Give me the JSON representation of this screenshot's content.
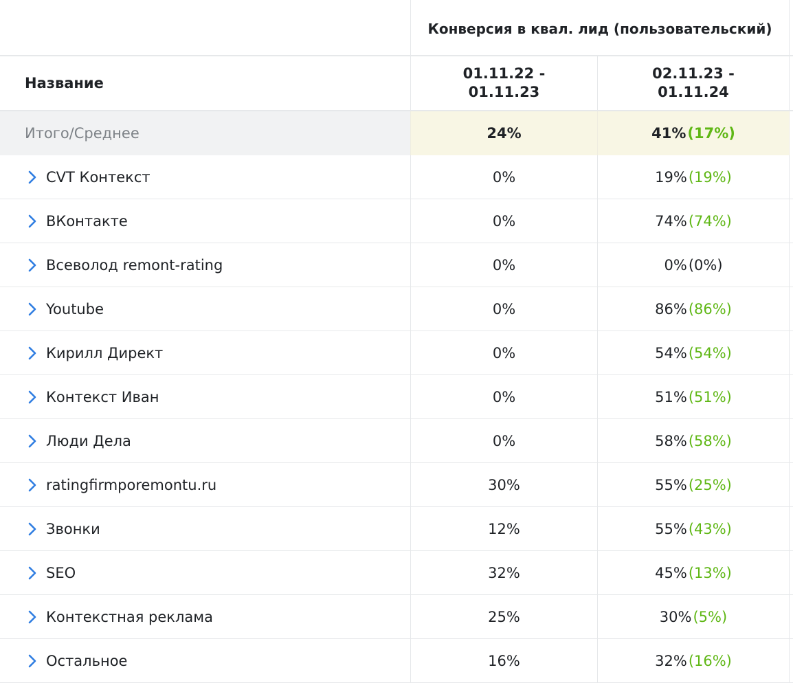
{
  "header": {
    "group_label": "Конверсия в квал. лид (пользовательский)",
    "name_label": "Название",
    "period1": "01.11.22 - 01.11.23",
    "period2": "02.11.23 - 01.11.24"
  },
  "total": {
    "label": "Итого/Среднее",
    "p1": "24%",
    "p2": "41%",
    "delta": "(17%)"
  },
  "rows": [
    {
      "name": "CVT Контекст",
      "p1": "0%",
      "p2": "19%",
      "delta": "(19%)"
    },
    {
      "name": "ВКонтакте",
      "p1": "0%",
      "p2": "74%",
      "delta": "(74%)"
    },
    {
      "name": "Всеволод remont-rating",
      "p1": "0%",
      "p2": "0%",
      "delta": "(0%)"
    },
    {
      "name": "Youtube",
      "p1": "0%",
      "p2": "86%",
      "delta": "(86%)"
    },
    {
      "name": "Кирилл Директ",
      "p1": "0%",
      "p2": "54%",
      "delta": "(54%)"
    },
    {
      "name": "Контекст Иван",
      "p1": "0%",
      "p2": "51%",
      "delta": "(51%)"
    },
    {
      "name": "Люди Дела",
      "p1": "0%",
      "p2": "58%",
      "delta": "(58%)"
    },
    {
      "name": "ratingfirmporemontu.ru",
      "p1": "30%",
      "p2": "55%",
      "delta": "(25%)"
    },
    {
      "name": "Звонки",
      "p1": "12%",
      "p2": "55%",
      "delta": "(43%)"
    },
    {
      "name": "SEO",
      "p1": "32%",
      "p2": "45%",
      "delta": "(13%)"
    },
    {
      "name": "Контекстная реклама",
      "p1": "25%",
      "p2": "30%",
      "delta": "(5%)"
    },
    {
      "name": "Остальное",
      "p1": "16%",
      "p2": "32%",
      "delta": "(16%)"
    }
  ],
  "icons": {
    "expand": "chevron-right-icon"
  },
  "colors": {
    "positive_delta": "#5fb715",
    "chevron": "#2f7de1",
    "total_highlight": "#f8f6e4"
  }
}
